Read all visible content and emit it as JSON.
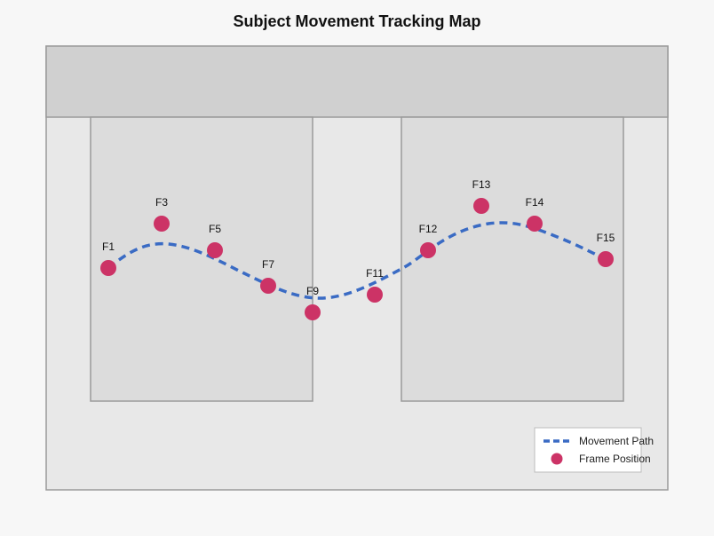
{
  "title": "Subject Movement Tracking Map",
  "colors": {
    "background": "#f7f7f7",
    "area": "#e8e8e8",
    "top_band": "#d0d0d0",
    "rooms": "#dcdcdc",
    "outline": "#9a9a9a",
    "path": "#3a6bc4",
    "point": "#cc3366"
  },
  "frames": [
    {
      "label": "F1"
    },
    {
      "label": "F3"
    },
    {
      "label": "F5"
    },
    {
      "label": "F7"
    },
    {
      "label": "F9"
    },
    {
      "label": "F11"
    },
    {
      "label": "F12"
    },
    {
      "label": "F13"
    },
    {
      "label": "F14"
    },
    {
      "label": "F15"
    }
  ],
  "legend": {
    "path_label": "Movement Path",
    "point_label": "Frame Position"
  }
}
